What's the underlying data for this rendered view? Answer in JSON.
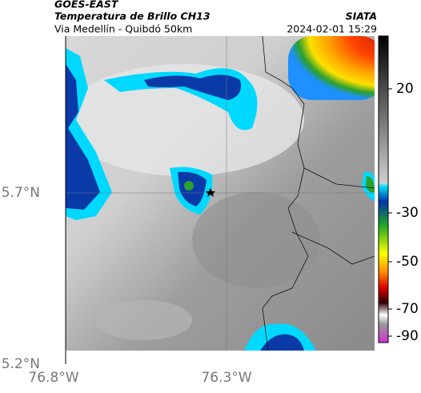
{
  "header": {
    "source": "GOES-EAST",
    "product": "Temperatura de Brillo CH13",
    "route": "Via Medellín - Quibdó 50km",
    "org": "SIATA",
    "datetime": "2024-02-01 15:29"
  },
  "map": {
    "lat_labels": [
      "5.7°N",
      "5.2°N"
    ],
    "lon_labels": [
      "76.8°W",
      "76.3°W"
    ]
  },
  "colorbar": {
    "ticks": [
      20,
      -30,
      -50,
      -70,
      -90
    ]
  }
}
